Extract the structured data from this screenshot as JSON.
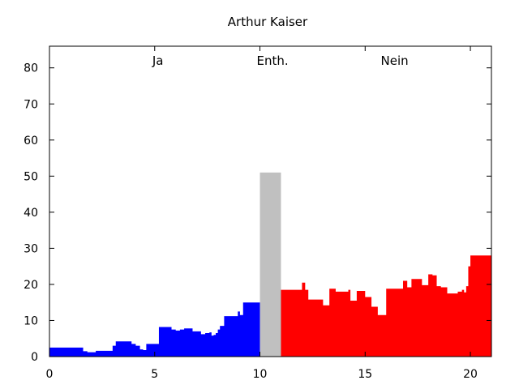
{
  "chart_data": {
    "type": "area",
    "title": "Arthur Kaiser",
    "xlabel": "",
    "ylabel": "",
    "xlim": [
      0,
      21
    ],
    "ylim": [
      0,
      86
    ],
    "x_ticks": [
      0,
      5,
      10,
      15,
      20
    ],
    "y_ticks": [
      0,
      10,
      20,
      30,
      40,
      50,
      60,
      70,
      80
    ],
    "grid": false,
    "groups": [
      {
        "label": "Ja",
        "x_center": 5.15
      },
      {
        "label": "Enth.",
        "x_center": 10.6
      },
      {
        "label": "Nein",
        "x_center": 16.4
      }
    ],
    "series": [
      {
        "name": "Ja",
        "color": "#0000ff",
        "x": [
          0,
          0.6,
          1.4,
          1.6,
          1.8,
          2.0,
          2.2,
          2.4,
          2.6,
          2.8,
          3.0,
          3.15,
          3.3,
          3.6,
          3.9,
          4.1,
          4.3,
          4.45,
          4.6,
          5.0,
          5.2,
          5.6,
          5.8,
          6.0,
          6.2,
          6.4,
          6.6,
          6.8,
          7.0,
          7.2,
          7.4,
          7.6,
          7.7,
          7.8,
          7.9,
          8.0,
          8.1,
          8.3,
          8.6,
          8.8,
          8.95,
          9.05,
          9.2,
          9.6
        ],
        "y": [
          2.5,
          2.5,
          2.5,
          1.5,
          1.2,
          1.2,
          1.6,
          1.6,
          1.6,
          1.6,
          3.0,
          4.2,
          4.2,
          4.2,
          3.5,
          3.0,
          2.0,
          1.8,
          3.5,
          3.5,
          8.2,
          8.2,
          7.5,
          7.2,
          7.5,
          7.8,
          7.8,
          7.0,
          7.0,
          6.2,
          6.5,
          6.7,
          5.8,
          6.0,
          6.5,
          7.5,
          8.5,
          11.2,
          11.2,
          11.2,
          12.5,
          11.5,
          15.0,
          15.0
        ],
        "x_end": 10.0
      },
      {
        "name": "Enth.",
        "color": "#c0c0c0",
        "x": [
          10.0
        ],
        "y": [
          51.0
        ],
        "x_end": 11.0
      },
      {
        "name": "Nein",
        "color": "#ff0000",
        "x": [
          11.0,
          11.5,
          12.0,
          12.15,
          12.3,
          12.7,
          13.0,
          13.3,
          13.6,
          13.9,
          14.2,
          14.3,
          14.6,
          14.9,
          15.0,
          15.3,
          15.6,
          15.9,
          16.0,
          16.5,
          16.8,
          17.0,
          17.2,
          17.5,
          17.7,
          18.0,
          18.2,
          18.4,
          18.6,
          18.9,
          19.2,
          19.4,
          19.6,
          19.7,
          19.8,
          19.9,
          20.0
        ],
        "y": [
          18.5,
          18.5,
          20.5,
          18.5,
          15.8,
          15.8,
          14.2,
          18.8,
          18.0,
          18.0,
          18.5,
          15.5,
          18.2,
          18.2,
          16.5,
          13.8,
          11.5,
          11.5,
          18.8,
          18.8,
          21.0,
          19.2,
          21.5,
          21.5,
          19.8,
          22.8,
          22.5,
          19.5,
          19.2,
          17.5,
          17.5,
          18.0,
          18.5,
          17.8,
          19.5,
          25.0,
          28.0
        ],
        "x_end": 21.0
      }
    ]
  }
}
